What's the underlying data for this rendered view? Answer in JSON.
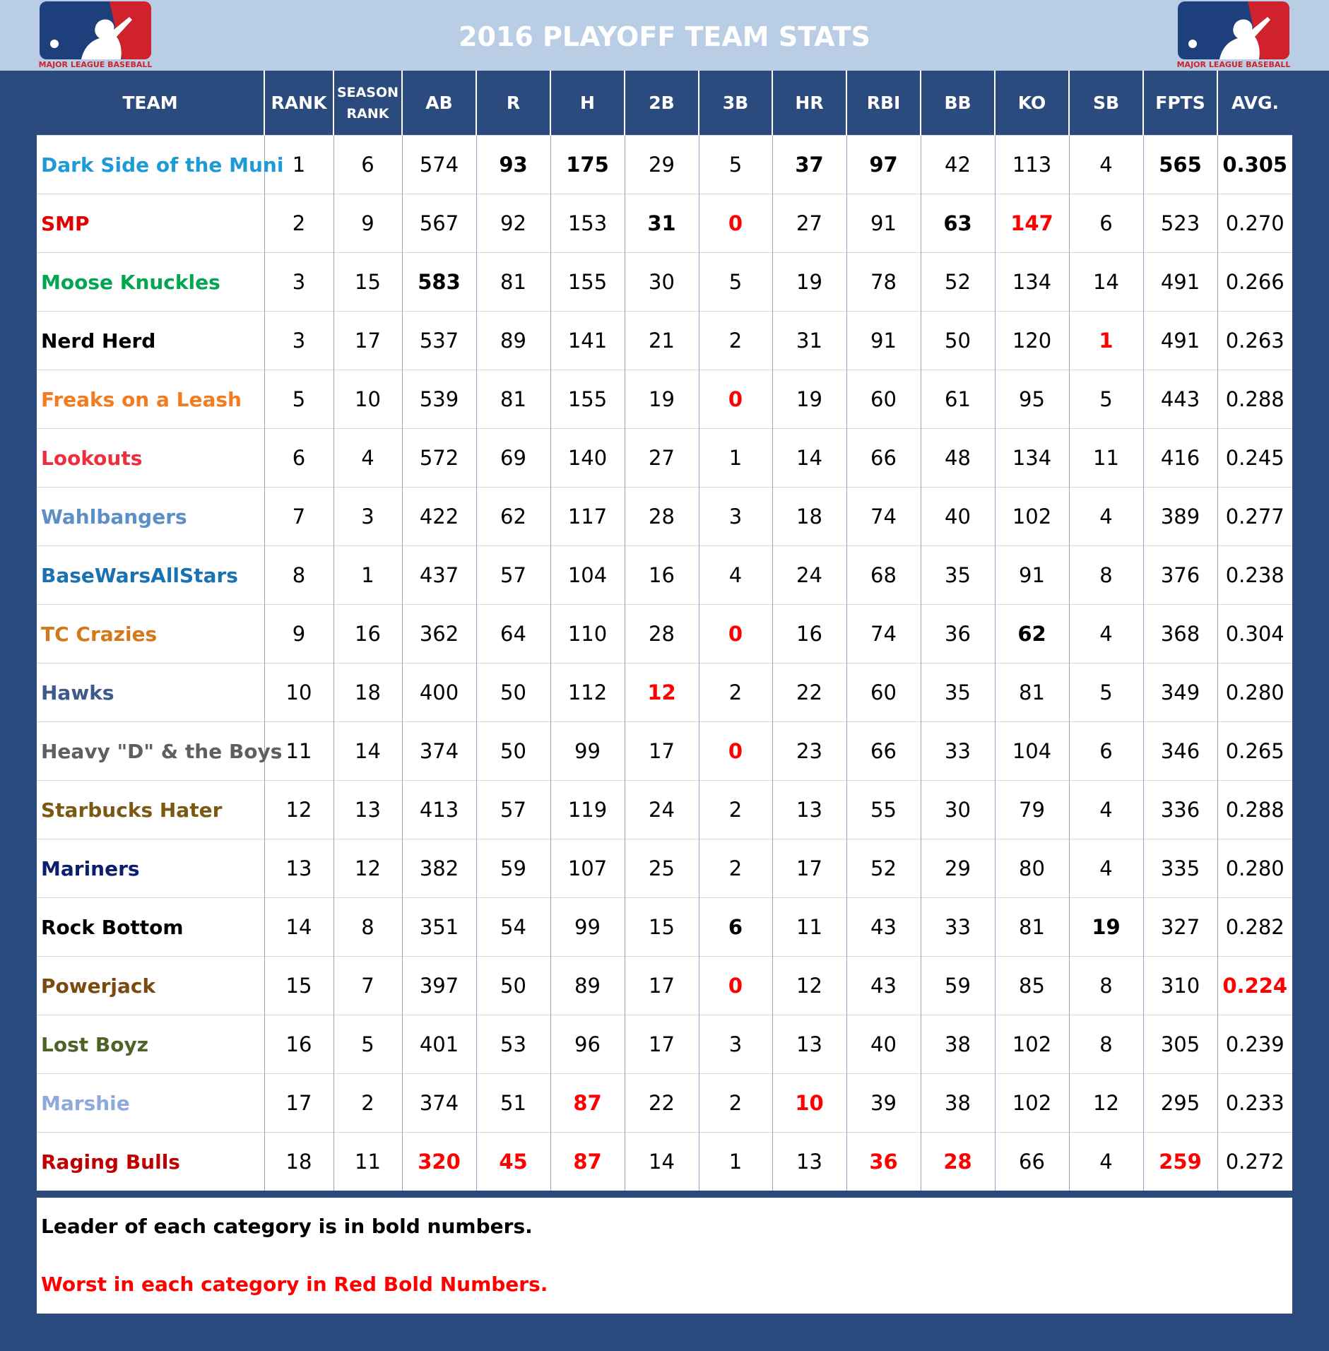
{
  "header": {
    "title": "2016 PLAYOFF TEAM STATS",
    "logo_text": "MAJOR LEAGUE BASEBALL"
  },
  "table": {
    "columns": [
      "TEAM",
      "RANK",
      "SEASON RANK",
      "AB",
      "R",
      "H",
      "2B",
      "3B",
      "HR",
      "RBI",
      "BB",
      "KO",
      "SB",
      "FPTS",
      "AVG."
    ],
    "rows": [
      {
        "team": "Dark Side of the Muni",
        "color": "#1e9ad6",
        "stats": [
          1,
          6,
          574,
          {
            "value": 93,
            "style": "leader"
          },
          {
            "value": 175,
            "style": "leader"
          },
          29,
          5,
          {
            "value": 37,
            "style": "leader"
          },
          {
            "value": 97,
            "style": "leader"
          },
          42,
          113,
          4,
          {
            "value": 565,
            "style": "leader"
          },
          {
            "value": "0.305",
            "style": "leader"
          }
        ]
      },
      {
        "team": "SMP",
        "color": "#e00000",
        "stats": [
          2,
          9,
          567,
          92,
          153,
          {
            "value": 31,
            "style": "leader"
          },
          {
            "value": 0,
            "style": "worst"
          },
          27,
          91,
          {
            "value": 63,
            "style": "leader"
          },
          {
            "value": 147,
            "style": "worst"
          },
          6,
          523,
          "0.270"
        ]
      },
      {
        "team": "Moose Knuckles",
        "color": "#00a650",
        "stats": [
          3,
          15,
          {
            "value": 583,
            "style": "leader"
          },
          81,
          155,
          30,
          5,
          19,
          78,
          52,
          134,
          14,
          491,
          "0.266"
        ]
      },
      {
        "team": "Nerd Herd",
        "color": "#000000",
        "stats": [
          3,
          17,
          537,
          89,
          141,
          21,
          2,
          31,
          91,
          50,
          120,
          {
            "value": 1,
            "style": "worst"
          },
          491,
          "0.263"
        ]
      },
      {
        "team": "Freaks on a Leash",
        "color": "#f47b20",
        "stats": [
          5,
          10,
          539,
          81,
          155,
          19,
          {
            "value": 0,
            "style": "worst"
          },
          19,
          60,
          61,
          95,
          5,
          443,
          "0.288"
        ]
      },
      {
        "team": "Lookouts",
        "color": "#ee2e3e",
        "stats": [
          6,
          4,
          572,
          69,
          140,
          27,
          1,
          14,
          66,
          48,
          134,
          11,
          416,
          "0.245"
        ]
      },
      {
        "team": "Wahlbangers",
        "color": "#5b8fc7",
        "stats": [
          7,
          3,
          422,
          62,
          117,
          28,
          3,
          18,
          74,
          40,
          102,
          4,
          389,
          "0.277"
        ]
      },
      {
        "team": "BaseWarsAllStars",
        "color": "#1a72b0",
        "stats": [
          8,
          1,
          437,
          57,
          104,
          16,
          4,
          24,
          68,
          35,
          91,
          8,
          376,
          "0.238"
        ]
      },
      {
        "team": "TC Crazies",
        "color": "#d4781c",
        "stats": [
          9,
          16,
          362,
          64,
          110,
          28,
          {
            "value": 0,
            "style": "worst"
          },
          16,
          74,
          36,
          {
            "value": 62,
            "style": "leader"
          },
          4,
          368,
          "0.304"
        ]
      },
      {
        "team": "Hawks",
        "color": "#3c5a8a",
        "stats": [
          10,
          18,
          400,
          50,
          112,
          {
            "value": 12,
            "style": "worst"
          },
          2,
          22,
          60,
          35,
          81,
          5,
          349,
          "0.280"
        ]
      },
      {
        "team": "Heavy \"D\" & the Boys",
        "color": "#5f5f5f",
        "stats": [
          11,
          14,
          374,
          50,
          99,
          17,
          {
            "value": 0,
            "style": "worst"
          },
          23,
          66,
          33,
          104,
          6,
          346,
          "0.265"
        ]
      },
      {
        "team": "Starbucks Hater",
        "color": "#7a5a12",
        "stats": [
          12,
          13,
          413,
          57,
          119,
          24,
          2,
          13,
          55,
          30,
          79,
          4,
          336,
          "0.288"
        ]
      },
      {
        "team": "Mariners",
        "color": "#0c1f6e",
        "stats": [
          13,
          12,
          382,
          59,
          107,
          25,
          2,
          17,
          52,
          29,
          80,
          4,
          335,
          "0.280"
        ]
      },
      {
        "team": "Rock Bottom",
        "color": "#000000",
        "stats": [
          14,
          8,
          351,
          54,
          99,
          15,
          {
            "value": 6,
            "style": "leader"
          },
          11,
          43,
          33,
          81,
          {
            "value": 19,
            "style": "leader"
          },
          327,
          "0.282"
        ]
      },
      {
        "team": "Powerjack",
        "color": "#7a4a10",
        "stats": [
          15,
          7,
          397,
          50,
          89,
          17,
          {
            "value": 0,
            "style": "worst"
          },
          12,
          43,
          59,
          85,
          8,
          310,
          {
            "value": "0.224",
            "style": "worst"
          }
        ]
      },
      {
        "team": "Lost Boyz",
        "color": "#4f6228",
        "stats": [
          16,
          5,
          401,
          53,
          96,
          17,
          3,
          13,
          40,
          38,
          102,
          8,
          305,
          "0.239"
        ]
      },
      {
        "team": "Marshie",
        "color": "#8eaadb",
        "stats": [
          17,
          2,
          374,
          51,
          {
            "value": 87,
            "style": "worst"
          },
          22,
          2,
          {
            "value": 10,
            "style": "worst"
          },
          39,
          38,
          102,
          12,
          295,
          "0.233"
        ]
      },
      {
        "team": "Raging Bulls",
        "color": "#c00000",
        "stats": [
          18,
          11,
          {
            "value": 320,
            "style": "worst"
          },
          {
            "value": 45,
            "style": "worst"
          },
          {
            "value": 87,
            "style": "worst"
          },
          14,
          1,
          13,
          {
            "value": 36,
            "style": "worst"
          },
          {
            "value": 28,
            "style": "worst"
          },
          66,
          4,
          {
            "value": 259,
            "style": "worst"
          },
          "0.272"
        ]
      }
    ]
  },
  "notes": [
    {
      "text": "Leader of each category is in bold numbers.",
      "color": "#000000"
    },
    {
      "text": "Worst in each category in Red Bold Numbers.",
      "color": "#ff0000"
    }
  ]
}
